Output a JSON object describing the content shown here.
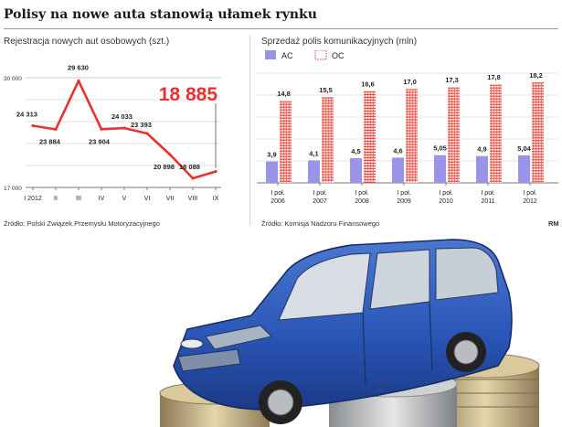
{
  "header": {
    "title": "Polisy na nowe auta stanowią ułamek rynku"
  },
  "left_panel": {
    "subtitle": "Rejestracja nowych aut osobowych (szt.)",
    "source": "Źródło: Polski Związek Przemysłu Motoryzacyjnego"
  },
  "right_panel": {
    "subtitle": "Sprzedaż polis komunikacyjnych (mln)",
    "source": "Źródło: Komisja Nadzoru Finansowego",
    "credit": "RM"
  },
  "chart_data": [
    {
      "type": "line",
      "title": "Rejestracja nowych aut osobowych (szt.)",
      "categories": [
        "I 2012",
        "II",
        "III",
        "IV",
        "V",
        "VI",
        "VII",
        "VIII",
        "IX"
      ],
      "values": [
        24313,
        23884,
        29630,
        23904,
        24033,
        23393,
        20898,
        18088,
        18885
      ],
      "value_labels": [
        "24 313",
        "23 884",
        "29 630",
        "23 904",
        "24 033",
        "23 393",
        "20 898",
        "18 088",
        "18 885"
      ],
      "y_ticks": [
        "30 000",
        "17 000"
      ],
      "ylim": [
        17000,
        30000
      ],
      "highlight": "18 885",
      "line_color": "#e8322f",
      "highlight_color": "#e8322f",
      "grid": true
    },
    {
      "type": "bar",
      "title": "Sprzedaż polis komunikacyjnych (mln)",
      "categories": [
        [
          "I poł.",
          "2006"
        ],
        [
          "I poł.",
          "2007"
        ],
        [
          "I poł.",
          "2008"
        ],
        [
          "I poł.",
          "2009"
        ],
        [
          "I poł.",
          "2010"
        ],
        [
          "I poł.",
          "2011"
        ],
        [
          "I poł.",
          "2012"
        ]
      ],
      "series": [
        {
          "name": "AC",
          "values": [
            3.9,
            4.1,
            4.5,
            4.6,
            5.05,
            4.9,
            5.04
          ],
          "labels": [
            "3,9",
            "4,1",
            "4,5",
            "4,6",
            "5,05",
            "4,9",
            "5,04"
          ],
          "color": "#9a94e8"
        },
        {
          "name": "OC",
          "values": [
            14.8,
            15.5,
            16.6,
            17.0,
            17.3,
            17.8,
            18.2
          ],
          "labels": [
            "14,8",
            "15,5",
            "16,6",
            "17,0",
            "17,3",
            "17,8",
            "18,2"
          ],
          "color": "#e8443a"
        }
      ],
      "ylim": [
        0,
        20
      ],
      "legend_position": "top-left",
      "grid": true
    }
  ]
}
